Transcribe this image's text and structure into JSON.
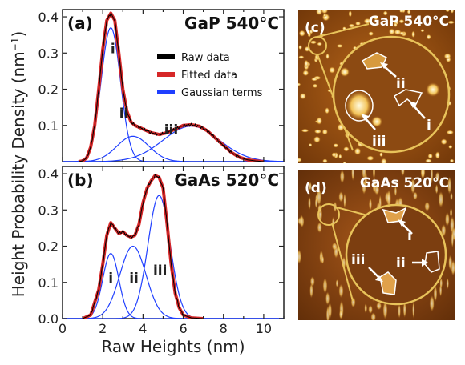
{
  "chart_data": [
    {
      "panel_label": "(a)",
      "sample": "GaP 540°C",
      "type": "line",
      "ylim": [
        0,
        0.42
      ],
      "xlim": [
        0,
        11
      ],
      "yticks": [
        0.1,
        0.2,
        0.3,
        0.4
      ],
      "yticklabels": [
        "0.1",
        "0.2",
        "0.3",
        "0.4"
      ],
      "peak_labels": [
        {
          "text": "i",
          "x": 2.5,
          "y": 0.3
        },
        {
          "text": "ii",
          "x": 3.05,
          "y": 0.12
        },
        {
          "text": "iii",
          "x": 5.4,
          "y": 0.075
        }
      ],
      "legend": {
        "placement": "top-right",
        "entries": [
          {
            "label": "Raw data",
            "color": "#000000"
          },
          {
            "label": "Fitted data",
            "color": "#d62728"
          },
          {
            "label": "Gaussian terms",
            "color": "#1f3fff"
          }
        ]
      },
      "gaussians": [
        {
          "amplitude": 0.37,
          "center": 2.4,
          "sigma": 0.48
        },
        {
          "amplitude": 0.07,
          "center": 3.5,
          "sigma": 0.8
        },
        {
          "amplitude": 0.098,
          "center": 6.4,
          "sigma": 1.4
        }
      ],
      "raw_data": {
        "x": [
          0.8,
          1.0,
          1.2,
          1.4,
          1.6,
          1.8,
          2.0,
          2.2,
          2.4,
          2.6,
          2.8,
          3.0,
          3.2,
          3.4,
          3.6,
          3.8,
          4.0,
          4.4,
          4.8,
          5.2,
          5.6,
          6.0,
          6.4,
          6.8,
          7.2,
          7.6,
          8.0,
          8.4,
          8.8,
          9.2,
          9.6,
          10.0
        ],
        "y": [
          0.0,
          0.002,
          0.01,
          0.04,
          0.1,
          0.2,
          0.31,
          0.39,
          0.41,
          0.39,
          0.3,
          0.2,
          0.14,
          0.11,
          0.1,
          0.095,
          0.09,
          0.08,
          0.075,
          0.08,
          0.09,
          0.1,
          0.102,
          0.098,
          0.085,
          0.065,
          0.045,
          0.025,
          0.012,
          0.005,
          0.002,
          0.0
        ]
      }
    },
    {
      "panel_label": "(b)",
      "sample": "GaAs 520°C",
      "type": "line",
      "ylim": [
        0,
        0.42
      ],
      "xlim": [
        0,
        11
      ],
      "yticks": [
        0.0,
        0.1,
        0.2,
        0.3,
        0.4
      ],
      "yticklabels": [
        "0.0",
        "0.1",
        "0.2",
        "0.3",
        "0.4"
      ],
      "peak_labels": [
        {
          "text": "i",
          "x": 2.4,
          "y": 0.1
        },
        {
          "text": "ii",
          "x": 3.55,
          "y": 0.1
        },
        {
          "text": "iii",
          "x": 4.85,
          "y": 0.12
        }
      ],
      "gaussians": [
        {
          "amplitude": 0.18,
          "center": 2.4,
          "sigma": 0.4
        },
        {
          "amplitude": 0.2,
          "center": 3.5,
          "sigma": 0.65
        },
        {
          "amplitude": 0.34,
          "center": 4.8,
          "sigma": 0.55
        }
      ],
      "raw_data": {
        "x": [
          1.0,
          1.4,
          1.8,
          2.0,
          2.2,
          2.4,
          2.6,
          2.8,
          3.0,
          3.2,
          3.4,
          3.6,
          3.8,
          4.0,
          4.2,
          4.4,
          4.6,
          4.8,
          5.0,
          5.2,
          5.4,
          5.6,
          5.8,
          6.0,
          6.4,
          7.0
        ],
        "y": [
          0.0,
          0.01,
          0.08,
          0.15,
          0.23,
          0.265,
          0.25,
          0.235,
          0.24,
          0.23,
          0.225,
          0.23,
          0.26,
          0.32,
          0.36,
          0.38,
          0.395,
          0.39,
          0.36,
          0.26,
          0.15,
          0.07,
          0.03,
          0.01,
          0.002,
          0.0
        ]
      }
    }
  ],
  "axes": {
    "ylabel": "Height Probability Density (nm",
    "ylabel_sup": "−1",
    "ylabel_close": ")",
    "xlabel": "Raw Heights (nm)",
    "xticks": [
      0,
      2,
      4,
      6,
      8,
      10
    ],
    "xticklabels": [
      "0",
      "2",
      "4",
      "6",
      "8",
      "10"
    ]
  },
  "images": [
    {
      "panel_label": "(c)",
      "sample": "GaP 540°C",
      "annotations": [
        "ii",
        "iii",
        "i"
      ],
      "colors": {
        "base": "#8a4a10",
        "bright": "#fff3b0",
        "ring": "#e8c35a"
      }
    },
    {
      "panel_label": "(d)",
      "sample": "GaAs 520°C",
      "annotations": [
        "i",
        "iii",
        "ii"
      ],
      "colors": {
        "base": "#7a3f10",
        "bright": "#f4d07a",
        "ring": "#e8c35a"
      }
    }
  ]
}
